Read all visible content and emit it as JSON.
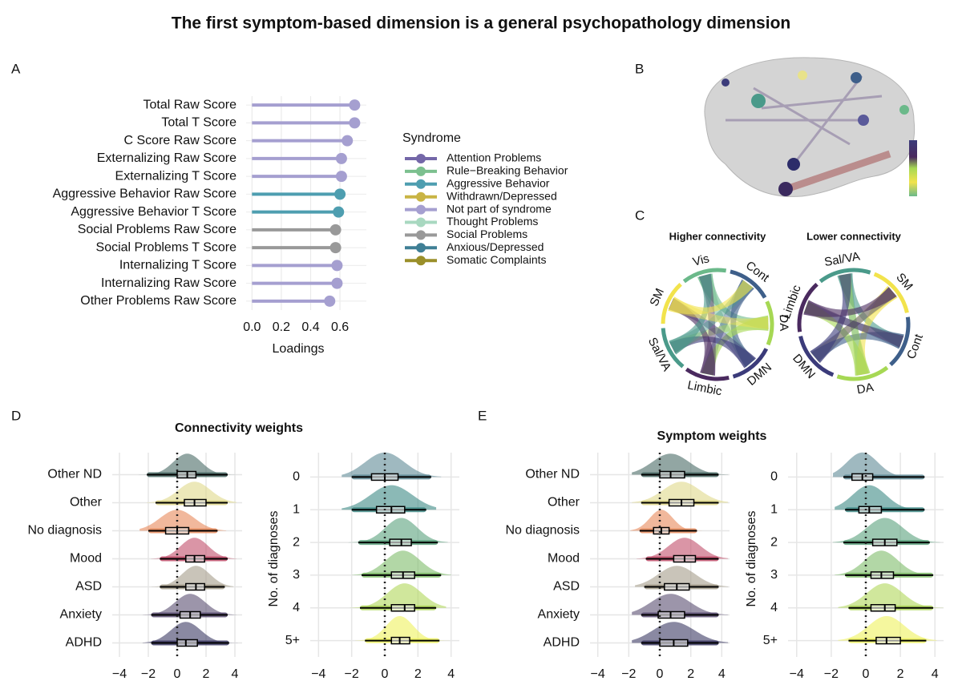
{
  "title": "The first symptom-based dimension is a general psychopathology dimension",
  "panel_labels": [
    "A",
    "B",
    "C",
    "D",
    "E"
  ],
  "group_titles": [
    "Connectivity weights",
    "Symptom weights"
  ],
  "chord": [
    {
      "title": "Higher connectivity",
      "labels": [
        "Vis",
        "Cont",
        "DA",
        "DMN",
        "Limbic",
        "Sal/VA",
        "SM"
      ],
      "colors": [
        "#6bb98a",
        "#3e5f8a",
        "#a6d854",
        "#3b3b7a",
        "#4a2a5f",
        "#4a9a8a",
        "#f2e34c"
      ]
    },
    {
      "title": "Lower connectivity",
      "labels": [
        "Sal/VA",
        "SM",
        "Cont",
        "DA",
        "DMN",
        "Limbic"
      ],
      "colors": [
        "#4a9a8a",
        "#f2e34c",
        "#3e5f8a",
        "#a6d854",
        "#3b3b7a",
        "#4a2a5f"
      ]
    }
  ],
  "chart_data": [
    {
      "type": "lollipop",
      "categories": [
        "Total Raw Score",
        "Total T Score",
        "C Score Raw Score",
        "Externalizing Raw Score",
        "Externalizing T Score",
        "Aggressive Behavior Raw Score",
        "Aggressive Behavior T Score",
        "Social Problems Raw Score",
        "Social Problems T Score",
        "Internalizing T Score",
        "Internalizing Raw Score",
        "Other Problems Raw Score"
      ],
      "values": [
        0.7,
        0.7,
        0.65,
        0.61,
        0.61,
        0.6,
        0.59,
        0.57,
        0.57,
        0.58,
        0.58,
        0.53
      ],
      "colors": [
        "#a59fd0",
        "#a59fd0",
        "#a59fd0",
        "#a59fd0",
        "#a59fd0",
        "#4e9eb0",
        "#4e9eb0",
        "#999999",
        "#999999",
        "#a59fd0",
        "#a59fd0",
        "#a59fd0"
      ],
      "xlim": [
        -0.04,
        0.78
      ],
      "xticks": [
        {
          "value": 0,
          "label": "0.0"
        },
        0.2,
        0.4,
        0.6
      ],
      "xlabel": "Loadings",
      "grid": true,
      "legend": {
        "title": "Syndrome",
        "names": [
          "Attention Problems",
          "Rule−Breaking Behavior",
          "Aggressive Behavior",
          "Withdrawn/Depressed",
          "Not part of syndrome",
          "Thought Problems",
          "Social Problems",
          "Anxious/Depressed",
          "Somatic Complaints"
        ],
        "colors": [
          "#7467a8",
          "#7cc08f",
          "#4e9eb0",
          "#c9b444",
          "#a59fd0",
          "#a8d8c0",
          "#999999",
          "#3f7f95",
          "#9a8f2a"
        ]
      }
    },
    {
      "type": "raincloud",
      "categories": [
        "Other ND",
        "Other",
        "No diagnosis",
        "Mood",
        "ASD",
        "Anxiety",
        "ADHD"
      ],
      "colors": [
        "#4a6b66",
        "#e0d88a",
        "#e8895a",
        "#c24e6b",
        "#a59c8a",
        "#5a4e72",
        "#3c3a64"
      ],
      "boxes": [
        {
          "median": 0.7,
          "q1": 0,
          "q3": 1.3,
          "low": -2.1,
          "high": 3.5
        },
        {
          "median": 1.2,
          "q1": 0.5,
          "q3": 2.0,
          "low": -1.5,
          "high": 3.5
        },
        {
          "median": 0,
          "q1": -0.8,
          "q3": 0.8,
          "low": -2,
          "high": 2.8
        },
        {
          "median": 1.2,
          "q1": 0.6,
          "q3": 1.9,
          "low": -1.2,
          "high": 3.5
        },
        {
          "median": 1.3,
          "q1": 0.6,
          "q3": 1.9,
          "low": -1.2,
          "high": 3.3
        },
        {
          "median": 0.9,
          "q1": 0.2,
          "q3": 1.6,
          "low": -1.8,
          "high": 3.5
        },
        {
          "median": 0.6,
          "q1": 0,
          "q3": 1.4,
          "low": -1.8,
          "high": 3.6
        }
      ],
      "xlim": [
        -4.5,
        4.5
      ],
      "xticks": [
        {
          "value": -4,
          "label": "−4"
        },
        {
          "value": -2,
          "label": "−2"
        },
        0,
        2,
        4
      ],
      "vline": 0,
      "grid": true
    },
    {
      "type": "raincloud",
      "ylabel": "No. of diagnoses",
      "categories": [
        "0",
        "1",
        "2",
        "3",
        "4",
        "5+"
      ],
      "colors": [
        "#5f8a96",
        "#3e8a86",
        "#5aa17d",
        "#7fbd6a",
        "#b0d75a",
        "#eef25e"
      ],
      "boxes": [
        {
          "median": 0,
          "q1": -0.8,
          "q3": 0.8,
          "low": -2,
          "high": 2.8
        },
        {
          "median": 0.4,
          "q1": -0.5,
          "q3": 1.2,
          "low": -2,
          "high": 2.5
        },
        {
          "median": 1,
          "q1": 0.3,
          "q3": 1.6,
          "low": -1.6,
          "high": 3.2
        },
        {
          "median": 1.1,
          "q1": 0.4,
          "q3": 1.8,
          "low": -1.4,
          "high": 3.4
        },
        {
          "median": 1.2,
          "q1": 0.4,
          "q3": 1.8,
          "low": -1.5,
          "high": 3.1
        },
        {
          "median": 0.9,
          "q1": 0.4,
          "q3": 1.5,
          "low": -1.2,
          "high": 3.3
        }
      ],
      "xlim": [
        -4.5,
        4.5
      ],
      "xticks": [
        {
          "value": -4,
          "label": "−4"
        },
        {
          "value": -2,
          "label": "−2"
        },
        0,
        2,
        4
      ],
      "vline": 0,
      "grid": true
    },
    {
      "type": "raincloud",
      "categories": [
        "Other ND",
        "Other",
        "No diagnosis",
        "Mood",
        "ASD",
        "Anxiety",
        "ADHD"
      ],
      "colors": [
        "#4a6b66",
        "#e0d88a",
        "#e8895a",
        "#c24e6b",
        "#a59c8a",
        "#5a4e72",
        "#3c3a64"
      ],
      "boxes": [
        {
          "median": 0.7,
          "q1": 0,
          "q3": 1.6,
          "low": -1.2,
          "high": 3.8
        },
        {
          "median": 1.4,
          "q1": 0.6,
          "q3": 2.2,
          "low": -1.2,
          "high": 3.8
        },
        {
          "median": 0.1,
          "q1": -0.4,
          "q3": 0.6,
          "low": -1.3,
          "high": 2.4
        },
        {
          "median": 1.6,
          "q1": 0.9,
          "q3": 2.3,
          "low": -0.9,
          "high": 3.8
        },
        {
          "median": 1.1,
          "q1": 0.3,
          "q3": 1.9,
          "low": -1,
          "high": 3.8
        },
        {
          "median": 0.7,
          "q1": -0.1,
          "q3": 1.6,
          "low": -1.2,
          "high": 3.8
        },
        {
          "median": 0.9,
          "q1": 0,
          "q3": 1.8,
          "low": -1.2,
          "high": 3.8
        }
      ],
      "xlim": [
        -4.5,
        4.5
      ],
      "xticks": [
        {
          "value": -4,
          "label": "−4"
        },
        {
          "value": -2,
          "label": "−2"
        },
        0,
        2,
        4
      ],
      "vline": 0,
      "grid": true
    },
    {
      "type": "raincloud",
      "ylabel": "No. of diagnoses",
      "categories": [
        "0",
        "1",
        "2",
        "3",
        "4",
        "5+"
      ],
      "colors": [
        "#5f8a96",
        "#3e8a86",
        "#5aa17d",
        "#7fbd6a",
        "#b0d75a",
        "#eef25e"
      ],
      "boxes": [
        {
          "median": -0.2,
          "q1": -0.8,
          "q3": 0.4,
          "low": -1.3,
          "high": 3.4
        },
        {
          "median": 0.2,
          "q1": -0.4,
          "q3": 0.9,
          "low": -1.2,
          "high": 3.4
        },
        {
          "median": 1.1,
          "q1": 0.4,
          "q3": 1.8,
          "low": -1.3,
          "high": 3.7
        },
        {
          "median": 0.9,
          "q1": 0.3,
          "q3": 1.6,
          "low": -1.2,
          "high": 3.9
        },
        {
          "median": 1.1,
          "q1": 0.3,
          "q3": 1.7,
          "low": -1,
          "high": 3.9
        },
        {
          "median": 1.2,
          "q1": 0.6,
          "q3": 2.0,
          "low": -1,
          "high": 3.5
        }
      ],
      "xlim": [
        -4.5,
        4.5
      ],
      "xticks": [
        {
          "value": -4,
          "label": "−4"
        },
        {
          "value": -2,
          "label": "−2"
        },
        0,
        2,
        4
      ],
      "vline": 0,
      "grid": true
    }
  ]
}
